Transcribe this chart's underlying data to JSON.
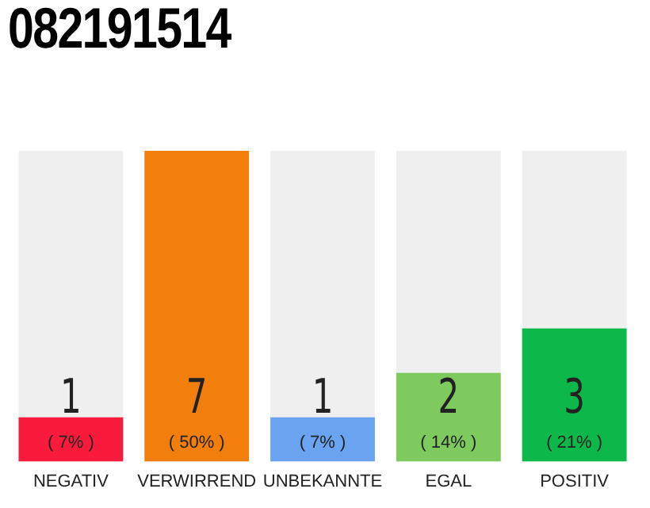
{
  "chart_data": {
    "type": "bar",
    "title": "082191514",
    "categories": [
      "NEGATIV",
      "VERWIRREND",
      "UNBEKANNTE",
      "EGAL",
      "POSITIV"
    ],
    "values": [
      1,
      7,
      1,
      2,
      3
    ],
    "colors": [
      "#fa1b3c",
      "#f27f0c",
      "#6aa3f0",
      "#7eca5e",
      "#0cb84a"
    ],
    "value_labels": [
      "1\n( 7% )",
      "7\n( 50% )",
      "1\n( 7% )",
      "2\n( 14% )",
      "3\n( 21% )"
    ],
    "grid": false,
    "legend": false,
    "tick_labels": "x"
  }
}
